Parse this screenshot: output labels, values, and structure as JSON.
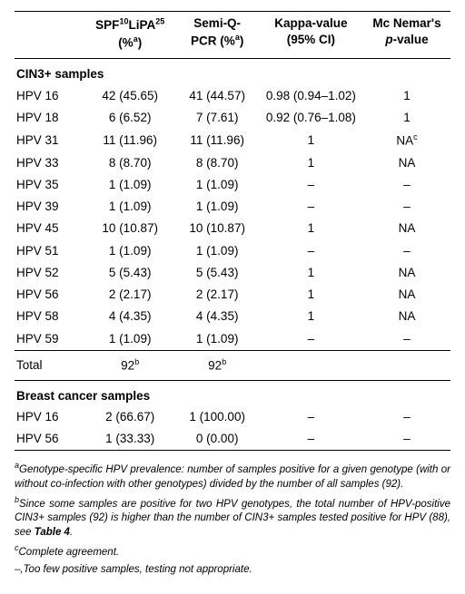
{
  "table": {
    "headers": {
      "col1": "",
      "col2_line1": "SPF",
      "col2_sub1": "10",
      "col2_mid": "LiPA",
      "col2_sub2": "25",
      "col2_line2": "(%",
      "col2_sup": "a",
      "col2_close": ")",
      "col3_line1": "Semi-Q-",
      "col3_line2": "PCR (%",
      "col3_sup": "a",
      "col3_close": ")",
      "col4_line1": "Kappa-value",
      "col4_line2": "(95% CI)",
      "col5_line1": "Mc Nemar's",
      "col5_line2_pre": "",
      "col5_pital": "p",
      "col5_line2_post": "-value"
    },
    "section1_title": "CIN3+ samples",
    "rows1": [
      {
        "label": "HPV 16",
        "spf": "42 (45.65)",
        "pcr": "41 (44.57)",
        "kappa": "0.98 (0.94–1.02)",
        "mcn": "1"
      },
      {
        "label": "HPV 18",
        "spf": "6 (6.52)",
        "pcr": "7 (7.61)",
        "kappa": "0.92 (0.76–1.08)",
        "mcn": "1"
      },
      {
        "label": "HPV 31",
        "spf": "11 (11.96)",
        "pcr": "11 (11.96)",
        "kappa": "1",
        "mcn": "NA",
        "mcn_sup": "c"
      },
      {
        "label": "HPV 33",
        "spf": "8 (8.70)",
        "pcr": "8 (8.70)",
        "kappa": "1",
        "mcn": "NA"
      },
      {
        "label": "HPV 35",
        "spf": "1 (1.09)",
        "pcr": "1 (1.09)",
        "kappa": "–",
        "mcn": "–"
      },
      {
        "label": "HPV 39",
        "spf": "1 (1.09)",
        "pcr": "1 (1.09)",
        "kappa": "–",
        "mcn": "–"
      },
      {
        "label": "HPV 45",
        "spf": "10 (10.87)",
        "pcr": "10 (10.87)",
        "kappa": "1",
        "mcn": "NA"
      },
      {
        "label": "HPV 51",
        "spf": "1 (1.09)",
        "pcr": "1 (1.09)",
        "kappa": "–",
        "mcn": "–"
      },
      {
        "label": "HPV 52",
        "spf": "5 (5.43)",
        "pcr": "5 (5.43)",
        "kappa": "1",
        "mcn": "NA"
      },
      {
        "label": "HPV 56",
        "spf": "2 (2.17)",
        "pcr": "2 (2.17)",
        "kappa": "1",
        "mcn": "NA"
      },
      {
        "label": "HPV 58",
        "spf": "4 (4.35)",
        "pcr": "4 (4.35)",
        "kappa": "1",
        "mcn": "NA"
      },
      {
        "label": "HPV 59",
        "spf": "1 (1.09)",
        "pcr": "1 (1.09)",
        "kappa": "–",
        "mcn": "–"
      }
    ],
    "total_row": {
      "label": "Total",
      "spf": "92",
      "spf_sup": "b",
      "pcr": "92",
      "pcr_sup": "b",
      "kappa": "",
      "mcn": ""
    },
    "section2_title": "Breast cancer samples",
    "rows2": [
      {
        "label": "HPV 16",
        "spf": "2 (66.67)",
        "pcr": "1 (100.00)",
        "kappa": "–",
        "mcn": "–"
      },
      {
        "label": "HPV 56",
        "spf": "1 (33.33)",
        "pcr": "0 (0.00)",
        "kappa": "–",
        "mcn": "–"
      }
    ]
  },
  "footnotes": {
    "a_pre": "a",
    "a_text": "Genotype-specific HPV prevalence: number of samples positive for a given genotype (with or without co-infection with other genotypes) divided by the number of all samples (92).",
    "b_pre": "b",
    "b_text_1": "Since some samples are positive for two HPV genotypes, the total number of HPV-positive CIN3+ samples (92) is higher than the number of CIN3+ samples tested positive for HPV (88), see ",
    "b_bold": "Table 4",
    "b_text_2": ".",
    "c_pre": "c",
    "c_text": "Complete agreement.",
    "dash_text": "–,Too few positive samples, testing not appropriate."
  }
}
